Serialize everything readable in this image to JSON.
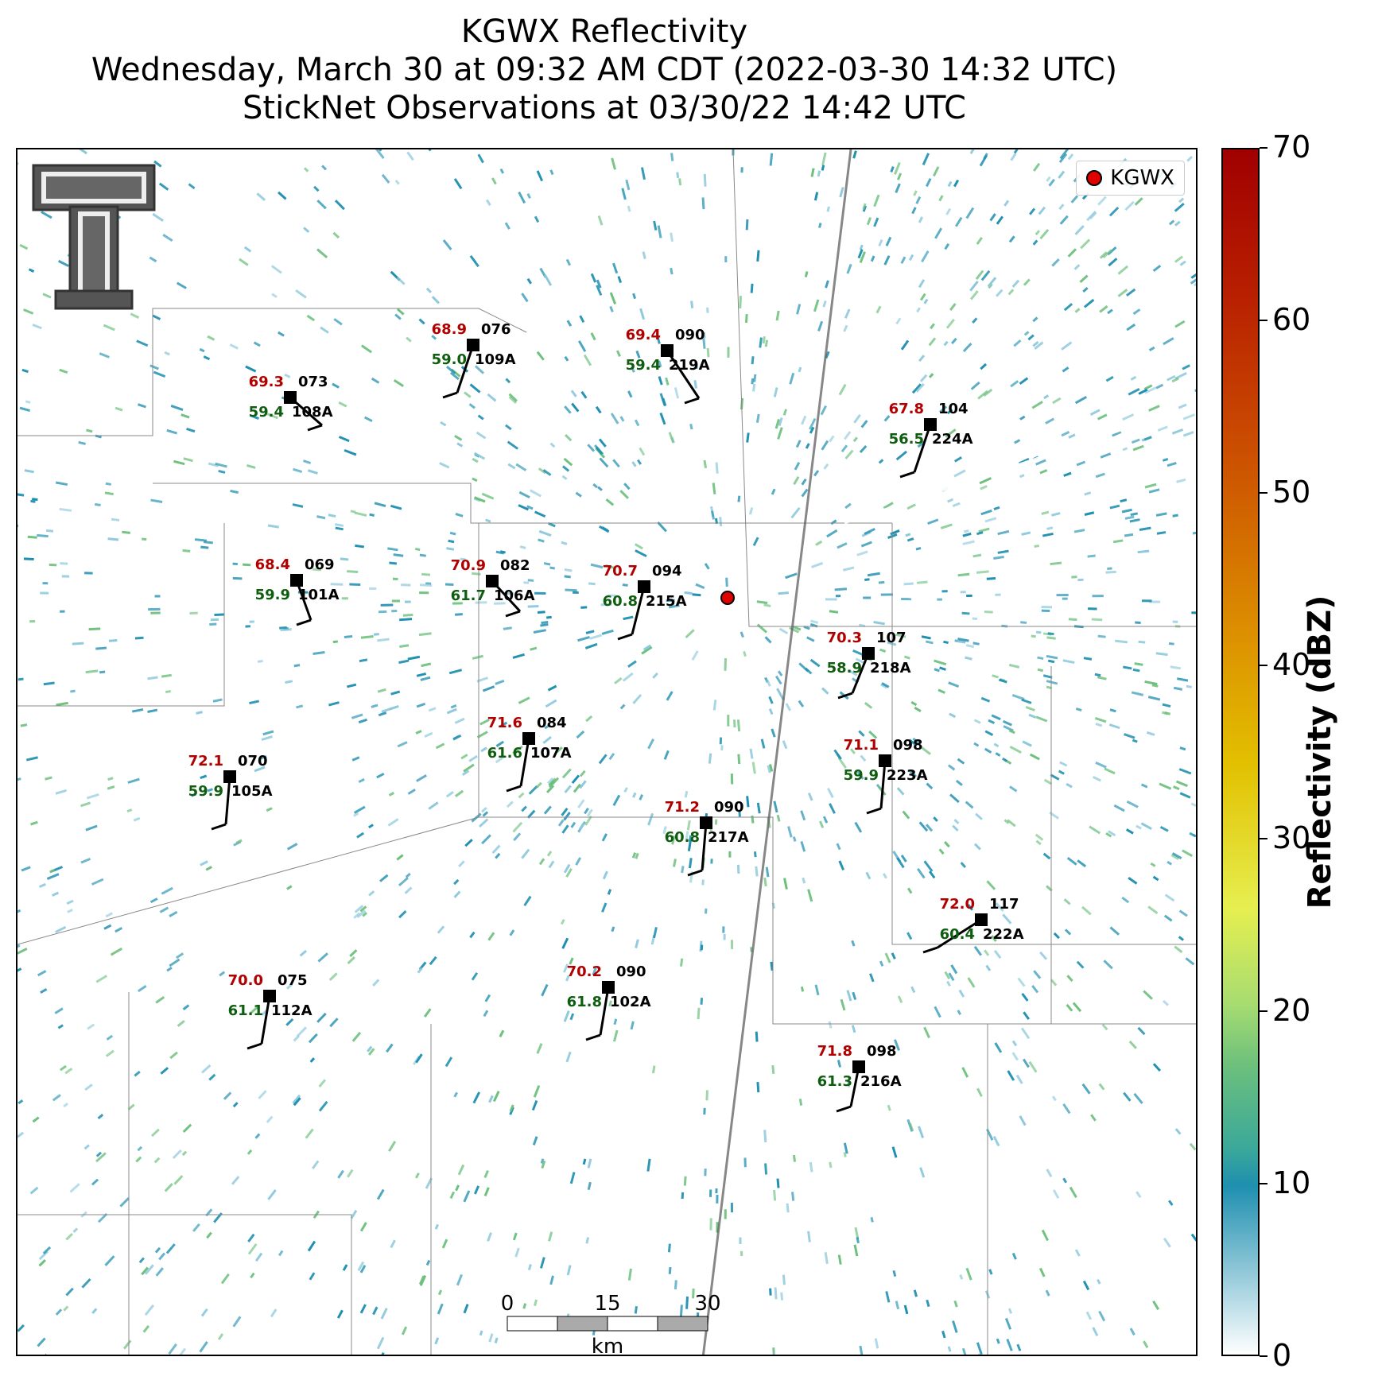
{
  "title": {
    "line1": "KGWX Reflectivity",
    "line2": "Wednesday, March 30 at 09:32 AM CDT (2022-03-30 14:32 UTC)",
    "line3": "StickNet Observations at 03/30/22 14:42 UTC"
  },
  "legend": {
    "label": "KGWX",
    "color": "#e00000"
  },
  "colorbar": {
    "title": "Reflectivity (dBZ)",
    "ticks": [
      "0",
      "10",
      "20",
      "30",
      "40",
      "50",
      "60",
      "70"
    ],
    "range": [
      0,
      70
    ]
  },
  "scale_bar": {
    "labels": [
      "0",
      "15",
      "30"
    ],
    "unit": "km"
  },
  "colors": {
    "temp": "#b00000",
    "dewpoint": "#0f5d0f",
    "station": "#000000",
    "echo": "#1e8fb0",
    "echo_light": "#8cc8dc",
    "echo_green": "#6cc07c"
  },
  "stations": [
    {
      "id": "109A",
      "temp": "68.9",
      "dew": "59.0",
      "dir": "076"
    },
    {
      "id": "219A",
      "temp": "69.4",
      "dew": "59.4",
      "dir": "090"
    },
    {
      "id": "108A",
      "temp": "69.3",
      "dew": "59.4",
      "dir": "073"
    },
    {
      "id": "224A",
      "temp": "67.8",
      "dew": "56.5",
      "dir": "104"
    },
    {
      "id": "101A",
      "temp": "68.4",
      "dew": "59.9",
      "dir": "069"
    },
    {
      "id": "106A",
      "temp": "70.9",
      "dew": "61.7",
      "dir": "082"
    },
    {
      "id": "215A",
      "temp": "70.7",
      "dew": "60.8",
      "dir": "094"
    },
    {
      "id": "218A",
      "temp": "70.3",
      "dew": "58.9",
      "dir": "107"
    },
    {
      "id": "107A",
      "temp": "71.6",
      "dew": "61.6",
      "dir": "084"
    },
    {
      "id": "223A",
      "temp": "71.1",
      "dew": "59.9",
      "dir": "098"
    },
    {
      "id": "105A",
      "temp": "72.1",
      "dew": "59.9",
      "dir": "070"
    },
    {
      "id": "217A",
      "temp": "71.2",
      "dew": "60.8",
      "dir": "090"
    },
    {
      "id": "222A",
      "temp": "72.0",
      "dew": "60.4",
      "dir": "117"
    },
    {
      "id": "102A",
      "temp": "70.2",
      "dew": "61.8",
      "dir": "090"
    },
    {
      "id": "112A",
      "temp": "70.0",
      "dew": "61.1",
      "dir": "075"
    },
    {
      "id": "216A",
      "temp": "71.8",
      "dew": "61.3",
      "dir": "098"
    }
  ]
}
